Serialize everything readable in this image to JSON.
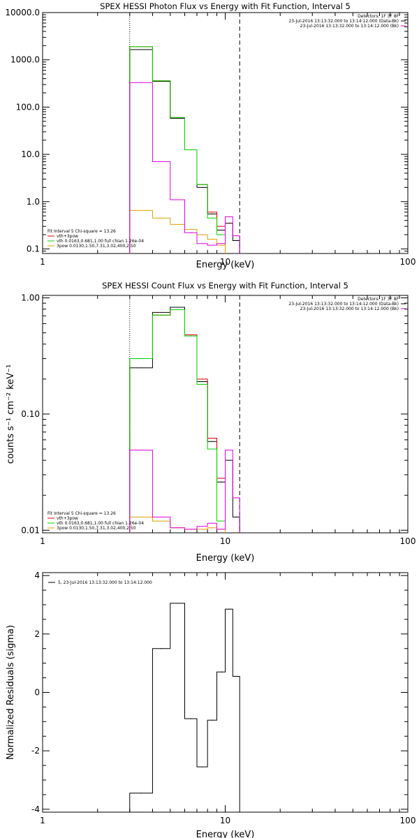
{
  "colors": {
    "data": "#000000",
    "total": "#e00000",
    "thermal": "#00d000",
    "nonthermal": "#e0a000",
    "background": "#e000e0"
  },
  "chart_data": [
    {
      "type": "line",
      "title": "SPEX HESSI Photon Flux vs Energy with Fit Function, Interval 5",
      "xlabel": "Energy (keV)",
      "ylabel": "",
      "xscale": "log",
      "yscale": "log",
      "xlim": [
        1,
        100
      ],
      "ylim": [
        0.08,
        10000
      ],
      "x_tick_labels": [
        "1",
        "10",
        "100"
      ],
      "y_tick_labels": [
        "0.1",
        "1.0",
        "10.0",
        "100.0",
        "1000.0",
        "10000.0"
      ],
      "y_ticks": [
        0.1,
        1,
        10,
        100,
        1000,
        10000
      ],
      "x_ticks": [
        1,
        10,
        100
      ],
      "vlines": [
        {
          "x": 3.0,
          "style": "dotted"
        },
        {
          "x": 12.0,
          "style": "dashed"
        }
      ],
      "legend_top": [
        "Detectors: 1F 3F 8F",
        "23-Jul-2016 13:13:32.000 to 13:14:12.000 (Data-Bk)",
        "23-Jul-2016 13:13:32.000 to 13:14:12.000 (Bk)"
      ],
      "legend_bottom": [
        "Fit Interval 5   Chi-square = 13.26",
        "vth+3pow",
        "vth 0.0163,0.681,1.00  full chian 1.26e-04",
        "3pow 0.0130,1.50,7.31,3.02,400,2.50"
      ],
      "edges": [
        3.0,
        4.0,
        5.0,
        6.0,
        7.0,
        8.0,
        9.0,
        10.0,
        11.0,
        12.0
      ],
      "series": [
        {
          "name": "23-Jul-2016 13:13:32.000 to 13:14:12.000 (Data-Bk)",
          "color": "#000000",
          "values": [
            1650,
            350,
            58,
            12.5,
            2.0,
            0.55,
            0.25,
            0.35,
            0.15
          ]
        },
        {
          "name": "vth+3pow",
          "color": "#e00000",
          "values": [
            1900,
            360,
            60,
            12.5,
            2.3,
            0.6,
            0.3,
            null,
            null
          ]
        },
        {
          "name": "vth 0.0163,0.681,1.00  full chian 1.26e-04",
          "color": "#00d000",
          "values": [
            1900,
            360,
            60,
            12.5,
            2.3,
            0.45,
            0.2,
            null,
            null
          ]
        },
        {
          "name": "3pow 0.0130,1.50,7.31,3.02,400,2.50",
          "color": "#e0a000",
          "values": [
            0.65,
            0.45,
            0.33,
            0.26,
            0.2,
            0.16,
            0.12,
            null,
            null
          ]
        },
        {
          "name": "23-Jul-2016 13:13:32.000 to 13:14:12.000 (Bk)",
          "color": "#e000e0",
          "values": [
            330,
            7.0,
            1.1,
            0.22,
            0.13,
            0.12,
            0.13,
            0.48,
            0.19
          ]
        }
      ]
    },
    {
      "type": "line",
      "title": "SPEX HESSI Count Flux vs Energy with Fit Function, Interval 5",
      "xlabel": "Energy (keV)",
      "ylabel": "counts s⁻¹ cm⁻² keV⁻¹",
      "xscale": "log",
      "yscale": "log",
      "xlim": [
        1,
        100
      ],
      "ylim": [
        0.0095,
        1.05
      ],
      "x_tick_labels": [
        "1",
        "10",
        "100"
      ],
      "y_tick_labels": [
        "0.01",
        "0.10",
        "1.00"
      ],
      "y_ticks": [
        0.01,
        0.1,
        1.0
      ],
      "x_ticks": [
        1,
        10,
        100
      ],
      "vlines": [
        {
          "x": 3.0,
          "style": "dotted"
        },
        {
          "x": 12.0,
          "style": "dashed"
        }
      ],
      "legend_top": [
        "Detectors: 1F 3F 8F",
        "23-Jul-2016 13:13:32.000 to 13:14:12.000 (Data-Bk)",
        "23-Jul-2016 13:13:32.000 to 13:14:12.000 (Bk)"
      ],
      "legend_bottom": [
        "Fit Interval 5   Chi-square = 13.26",
        "vth+3pow",
        "vth 0.0163,0.681,1.00  full chian 1.26e-04",
        "3pow 0.0130,1.50,7.31,3.02,400,2.50"
      ],
      "edges": [
        3.0,
        4.0,
        5.0,
        6.0,
        7.0,
        8.0,
        9.0,
        10.0,
        11.0,
        12.0
      ],
      "series": [
        {
          "name": "23-Jul-2016 13:13:32.000 to 13:14:12.000 (Data-Bk)",
          "color": "#000000",
          "values": [
            0.25,
            0.75,
            0.83,
            0.48,
            0.19,
            0.058,
            0.026,
            0.04,
            0.013
          ]
        },
        {
          "name": "vth+3pow",
          "color": "#e00000",
          "values": [
            0.3,
            0.71,
            0.79,
            0.48,
            0.2,
            0.062,
            0.028,
            null,
            null
          ]
        },
        {
          "name": "vth 0.0163,0.681,1.00  full chian 1.26e-04",
          "color": "#00d000",
          "values": [
            0.3,
            0.71,
            0.79,
            0.47,
            0.18,
            0.05,
            0.012,
            null,
            null
          ]
        },
        {
          "name": "3pow 0.0130,1.50,7.31,3.02,400,2.50",
          "color": "#e0a000",
          "values": [
            0.013,
            0.012,
            0.0105,
            0.0102,
            0.0102,
            0.0105,
            0.0102,
            null,
            null
          ]
        },
        {
          "name": "23-Jul-2016 13:13:32.000 to 13:14:12.000 (Bk)",
          "color": "#e000e0",
          "values": [
            0.049,
            0.013,
            0.0105,
            0.0102,
            0.0108,
            0.0115,
            0.0102,
            0.049,
            0.019
          ]
        }
      ]
    },
    {
      "type": "line",
      "title": "",
      "xlabel": "Energy (keV)",
      "ylabel": "Normalized Residuals (sigma)",
      "xscale": "log",
      "yscale": "linear",
      "xlim": [
        1,
        100
      ],
      "ylim": [
        -4.1,
        4.1
      ],
      "x_tick_labels": [
        "1",
        "10",
        "100"
      ],
      "y_tick_labels": [
        "-4",
        "-2",
        "0",
        "2",
        "4"
      ],
      "y_ticks": [
        -4,
        -2,
        0,
        2,
        4
      ],
      "x_ticks": [
        1,
        10,
        100
      ],
      "legend_top": [
        "5, 23-Jul-2016 13:13:32.000 to 13:14:12.000"
      ],
      "edges": [
        3.0,
        4.0,
        5.0,
        6.0,
        7.0,
        8.0,
        9.0,
        10.0,
        11.0,
        12.0
      ],
      "series": [
        {
          "name": "5, 23-Jul-2016 13:13:32.000 to 13:14:12.000",
          "color": "#000000",
          "values": [
            -3.45,
            1.5,
            3.05,
            -0.9,
            -2.55,
            -0.95,
            0.7,
            2.85,
            0.55
          ]
        }
      ]
    }
  ]
}
